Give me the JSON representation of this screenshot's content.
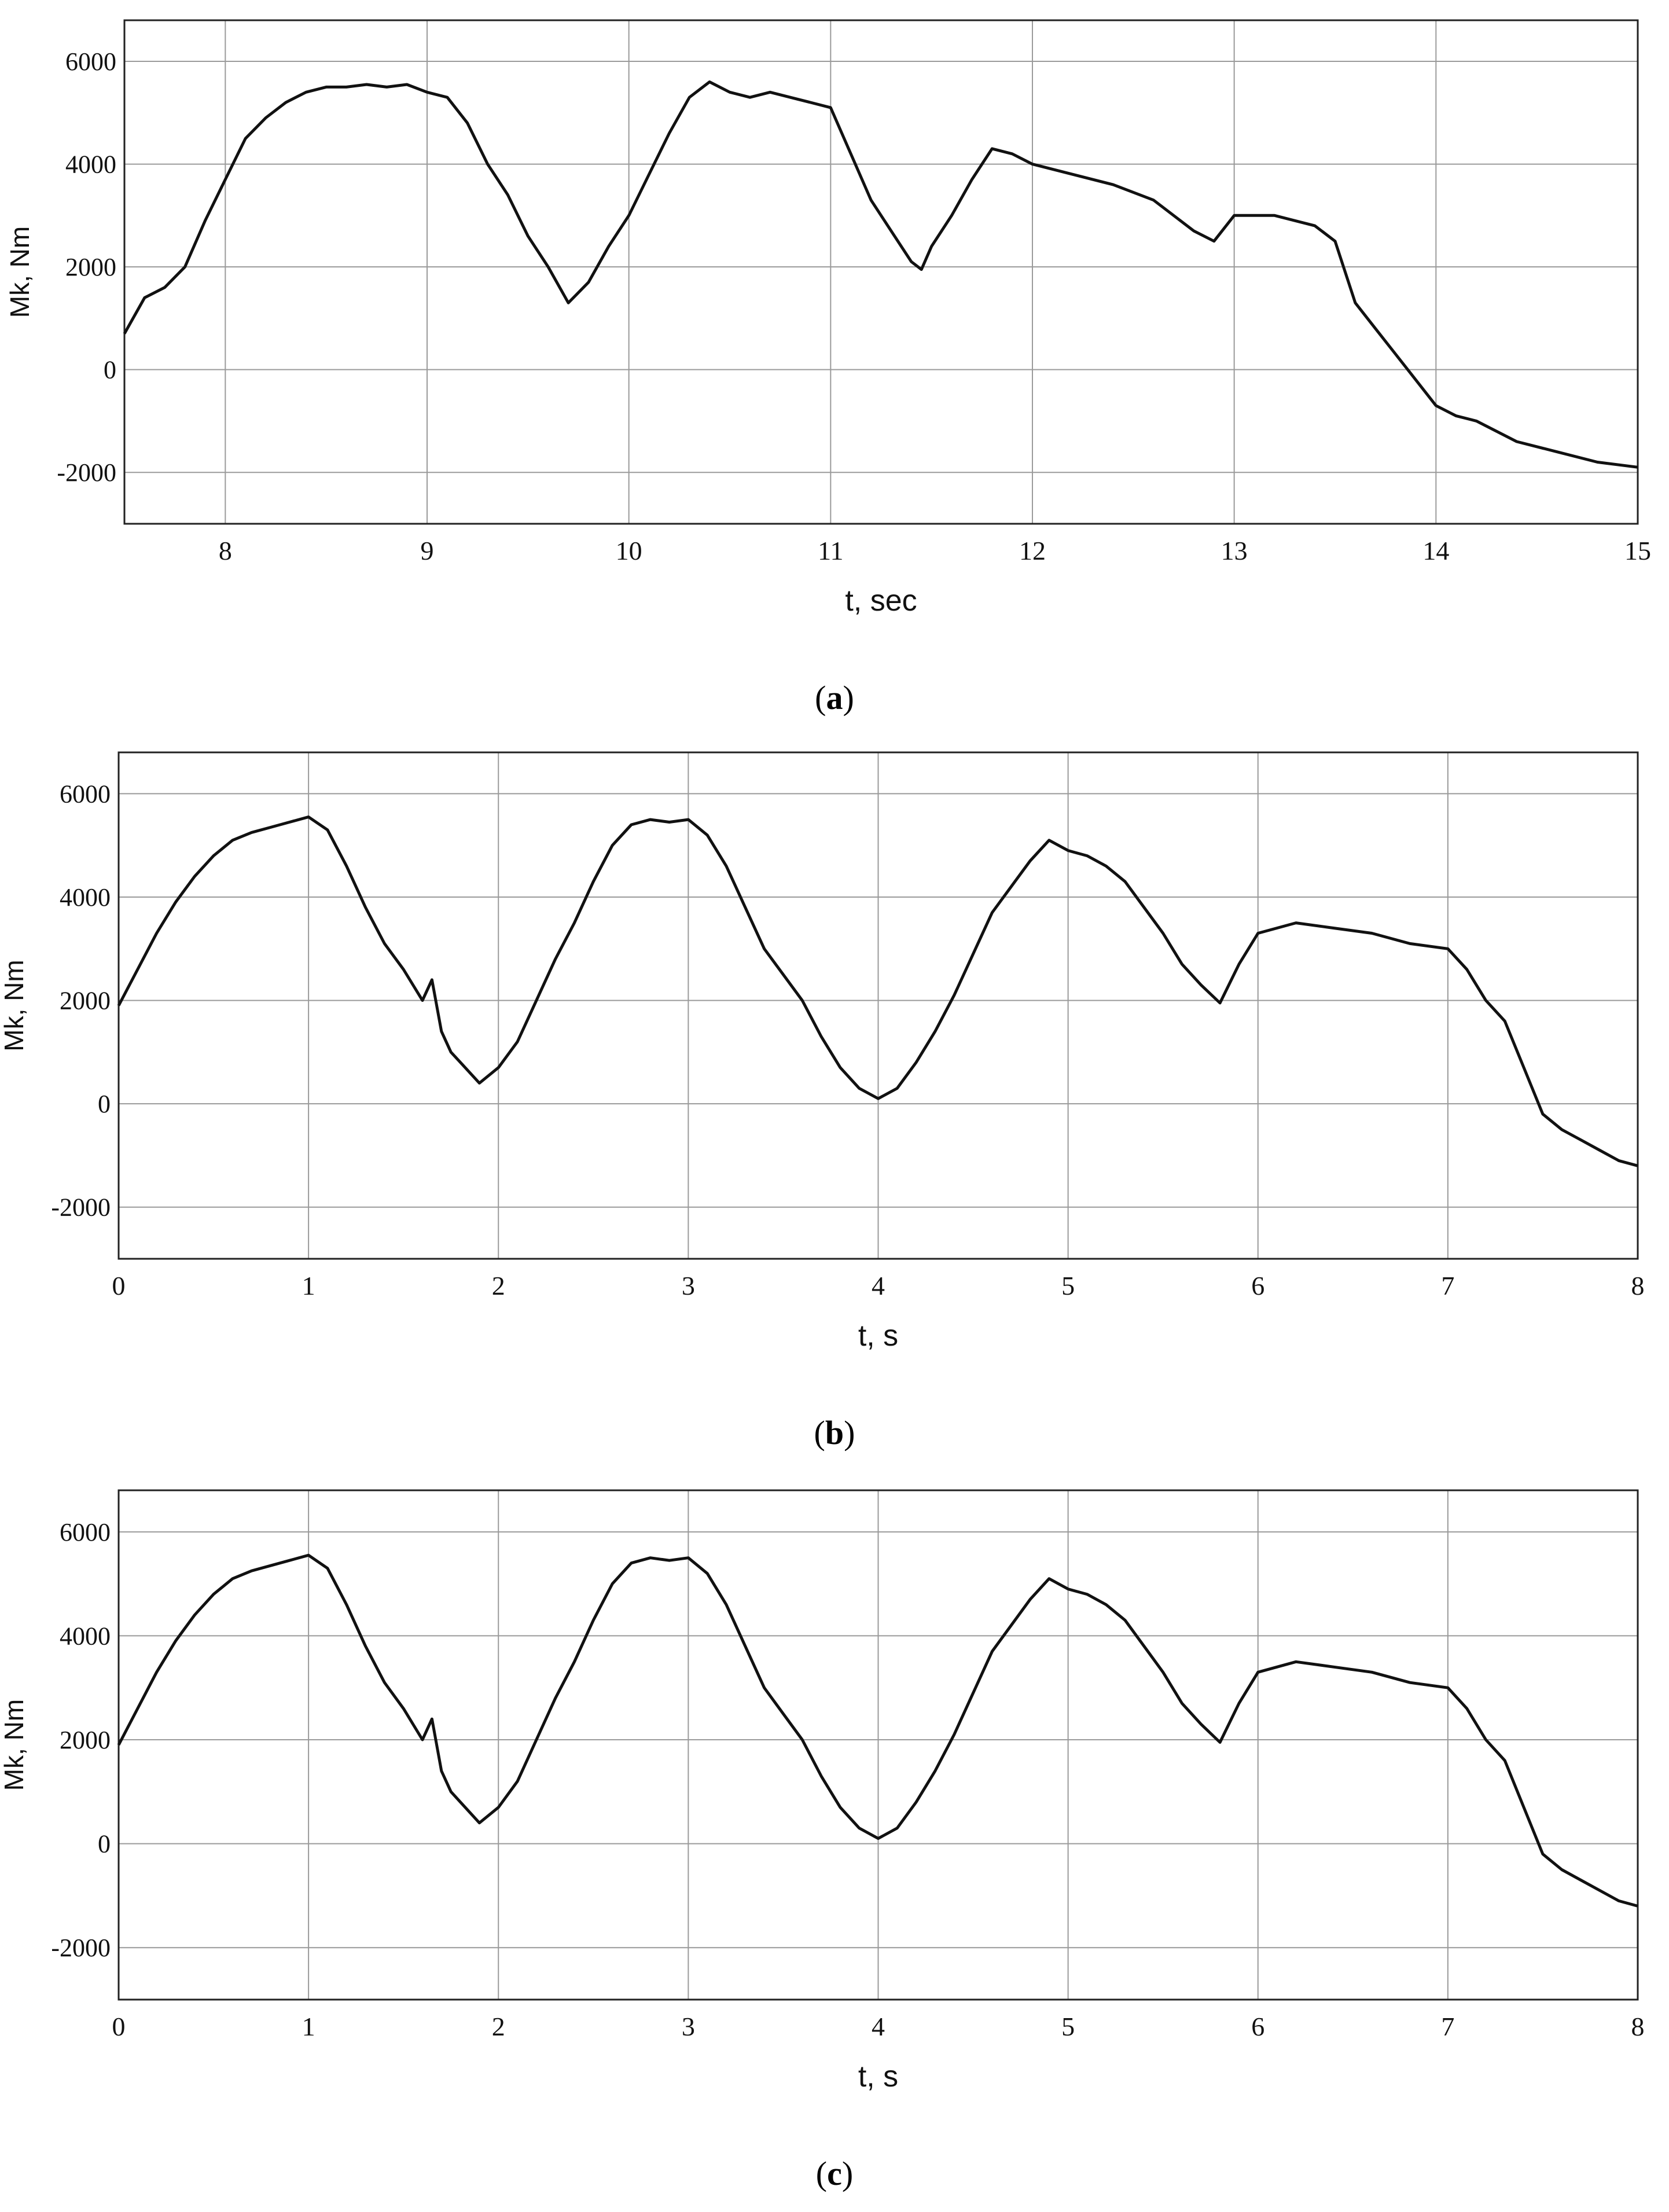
{
  "chart_data": [
    {
      "id": "a",
      "type": "line",
      "caption": "a",
      "xlabel": "t, sec",
      "ylabel": "Mk, Nm",
      "xlim": [
        7.5,
        15
      ],
      "ylim": [
        -3000,
        6800
      ],
      "xticks": [
        8,
        9,
        10,
        11,
        12,
        13,
        14,
        15
      ],
      "yticks": [
        -2000,
        0,
        2000,
        4000,
        6000
      ],
      "grid": true,
      "series": [
        {
          "color": "#111111",
          "x": [
            7.5,
            7.6,
            7.7,
            7.8,
            7.9,
            8.0,
            8.1,
            8.2,
            8.3,
            8.4,
            8.5,
            8.6,
            8.7,
            8.8,
            8.9,
            9.0,
            9.1,
            9.2,
            9.3,
            9.4,
            9.5,
            9.6,
            9.7,
            9.8,
            9.9,
            10.0,
            10.1,
            10.2,
            10.3,
            10.4,
            10.5,
            10.6,
            10.7,
            10.8,
            10.9,
            11.0,
            11.1,
            11.2,
            11.3,
            11.4,
            11.45,
            11.5,
            11.6,
            11.7,
            11.8,
            11.9,
            12.0,
            12.2,
            12.4,
            12.6,
            12.8,
            12.9,
            13.0,
            13.2,
            13.4,
            13.5,
            13.6,
            13.7,
            13.8,
            13.9,
            14.0,
            14.1,
            14.2,
            14.4,
            14.6,
            14.8,
            15.0
          ],
          "y": [
            700,
            1400,
            1600,
            2000,
            2900,
            3700,
            4500,
            4900,
            5200,
            5400,
            5500,
            5500,
            5550,
            5500,
            5550,
            5400,
            5300,
            4800,
            4000,
            3400,
            2600,
            2000,
            1300,
            1700,
            2400,
            3000,
            3800,
            4600,
            5300,
            5600,
            5400,
            5300,
            5400,
            5300,
            5200,
            5100,
            4200,
            3300,
            2700,
            2100,
            1950,
            2400,
            3000,
            3700,
            4300,
            4200,
            4000,
            3800,
            3600,
            3300,
            2700,
            2500,
            3000,
            3000,
            2800,
            2500,
            1300,
            800,
            300,
            -200,
            -700,
            -900,
            -1000,
            -1400,
            -1600,
            -1800,
            -1900
          ]
        }
      ]
    },
    {
      "id": "b",
      "type": "line",
      "caption": "b",
      "xlabel": "t, s",
      "ylabel": "Mk, Nm",
      "xlim": [
        0,
        8
      ],
      "ylim": [
        -3000,
        6800
      ],
      "xticks": [
        0,
        1,
        2,
        3,
        4,
        5,
        6,
        7,
        8
      ],
      "yticks": [
        -2000,
        0,
        2000,
        4000,
        6000
      ],
      "grid": true,
      "series": [
        {
          "color": "#111111",
          "x": [
            0.0,
            0.1,
            0.2,
            0.3,
            0.4,
            0.5,
            0.6,
            0.7,
            0.8,
            0.9,
            1.0,
            1.1,
            1.2,
            1.3,
            1.4,
            1.5,
            1.6,
            1.65,
            1.7,
            1.75,
            1.8,
            1.9,
            2.0,
            2.1,
            2.2,
            2.3,
            2.4,
            2.5,
            2.6,
            2.7,
            2.8,
            2.9,
            3.0,
            3.1,
            3.2,
            3.3,
            3.4,
            3.5,
            3.6,
            3.7,
            3.8,
            3.9,
            4.0,
            4.1,
            4.2,
            4.3,
            4.4,
            4.5,
            4.6,
            4.7,
            4.8,
            4.9,
            5.0,
            5.1,
            5.2,
            5.3,
            5.4,
            5.5,
            5.6,
            5.7,
            5.8,
            5.9,
            6.0,
            6.2,
            6.4,
            6.6,
            6.8,
            7.0,
            7.1,
            7.2,
            7.3,
            7.4,
            7.5,
            7.6,
            7.7,
            7.8,
            7.9,
            8.0
          ],
          "y": [
            1900,
            2600,
            3300,
            3900,
            4400,
            4800,
            5100,
            5250,
            5350,
            5450,
            5550,
            5300,
            4600,
            3800,
            3100,
            2600,
            2000,
            2400,
            1400,
            1000,
            800,
            400,
            700,
            1200,
            2000,
            2800,
            3500,
            4300,
            5000,
            5400,
            5500,
            5450,
            5500,
            5200,
            4600,
            3800,
            3000,
            2500,
            2000,
            1300,
            700,
            300,
            100,
            300,
            800,
            1400,
            2100,
            2900,
            3700,
            4200,
            4700,
            5100,
            4900,
            4800,
            4600,
            4300,
            3800,
            3300,
            2700,
            2300,
            1950,
            2700,
            3300,
            3500,
            3400,
            3300,
            3100,
            3000,
            2600,
            2000,
            1600,
            700,
            -200,
            -500,
            -700,
            -900,
            -1100,
            -1200
          ]
        }
      ]
    },
    {
      "id": "c",
      "type": "line",
      "caption": "c",
      "xlabel": "t, s",
      "ylabel": "Mk, Nm",
      "xlim": [
        0,
        8
      ],
      "ylim": [
        -3000,
        6800
      ],
      "xticks": [
        0,
        1,
        2,
        3,
        4,
        5,
        6,
        7,
        8
      ],
      "yticks": [
        -2000,
        0,
        2000,
        4000,
        6000
      ],
      "grid": true,
      "series": [
        {
          "color": "#111111",
          "x": [
            0.0,
            0.1,
            0.2,
            0.3,
            0.4,
            0.5,
            0.6,
            0.7,
            0.8,
            0.9,
            1.0,
            1.1,
            1.2,
            1.3,
            1.4,
            1.5,
            1.6,
            1.65,
            1.7,
            1.75,
            1.8,
            1.9,
            2.0,
            2.1,
            2.2,
            2.3,
            2.4,
            2.5,
            2.6,
            2.7,
            2.8,
            2.9,
            3.0,
            3.1,
            3.2,
            3.3,
            3.4,
            3.5,
            3.6,
            3.7,
            3.8,
            3.9,
            4.0,
            4.1,
            4.2,
            4.3,
            4.4,
            4.5,
            4.6,
            4.7,
            4.8,
            4.9,
            5.0,
            5.1,
            5.2,
            5.3,
            5.4,
            5.5,
            5.6,
            5.7,
            5.8,
            5.9,
            6.0,
            6.2,
            6.4,
            6.6,
            6.8,
            7.0,
            7.1,
            7.2,
            7.3,
            7.4,
            7.5,
            7.6,
            7.7,
            7.8,
            7.9,
            8.0
          ],
          "y": [
            1900,
            2600,
            3300,
            3900,
            4400,
            4800,
            5100,
            5250,
            5350,
            5450,
            5550,
            5300,
            4600,
            3800,
            3100,
            2600,
            2000,
            2400,
            1400,
            1000,
            800,
            400,
            700,
            1200,
            2000,
            2800,
            3500,
            4300,
            5000,
            5400,
            5500,
            5450,
            5500,
            5200,
            4600,
            3800,
            3000,
            2500,
            2000,
            1300,
            700,
            300,
            100,
            300,
            800,
            1400,
            2100,
            2900,
            3700,
            4200,
            4700,
            5100,
            4900,
            4800,
            4600,
            4300,
            3800,
            3300,
            2700,
            2300,
            1950,
            2700,
            3300,
            3500,
            3400,
            3300,
            3100,
            3000,
            2600,
            2000,
            1600,
            700,
            -200,
            -500,
            -700,
            -900,
            -1100,
            -1200
          ]
        }
      ]
    }
  ]
}
